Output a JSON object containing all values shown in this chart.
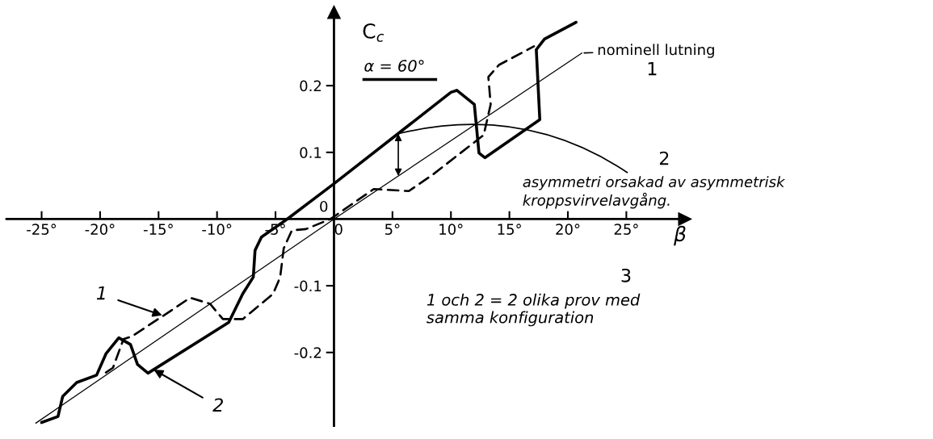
{
  "chart_data": {
    "type": "line",
    "xlabel": "β",
    "ylabel": "C$_{c}$",
    "xlim": [
      -28,
      30
    ],
    "ylim": [
      -0.31,
      0.31
    ],
    "xticks": [
      {
        "value": -25,
        "label": "-25°"
      },
      {
        "value": -20,
        "label": "-20°"
      },
      {
        "value": -15,
        "label": "-15°"
      },
      {
        "value": -10,
        "label": "-10°"
      },
      {
        "value": -5,
        "label": "-5°"
      },
      0,
      {
        "value": 5,
        "label": "5°"
      },
      {
        "value": 10,
        "label": "10°"
      },
      {
        "value": 15,
        "label": "15°"
      },
      {
        "value": 20,
        "label": "20°"
      },
      {
        "value": 25,
        "label": "25°"
      }
    ],
    "yticks": [
      {
        "value": -0.2,
        "label": "-0.2"
      },
      {
        "value": -0.1,
        "label": "-0.1"
      },
      0.1,
      0.2
    ],
    "grid": false,
    "series": [
      {
        "color": "#000000",
        "line_style": "solid",
        "x": [
          -25,
          -23.6,
          -23.2,
          -22.0,
          -20.3,
          -19.5,
          -18.4,
          -17.4,
          -16.8,
          -15.9,
          -9.0,
          -7.8,
          -6.9,
          -6.75,
          -6.2,
          -4.0,
          0,
          10.0,
          10.5,
          12.0,
          12.4,
          12.9,
          17.6,
          17.3,
          18.0,
          20.7
        ],
        "values": [
          -0.305,
          -0.296,
          -0.266,
          -0.245,
          -0.234,
          -0.202,
          -0.178,
          -0.188,
          -0.218,
          -0.231,
          -0.155,
          -0.112,
          -0.087,
          -0.047,
          -0.027,
          0,
          0.053,
          0.19,
          0.193,
          0.172,
          0.099,
          0.092,
          0.149,
          0.254,
          0.27,
          0.295
        ]
      },
      {
        "color": "#000000",
        "line_style": "dashed",
        "x": [
          -19.5,
          -18.9,
          -18.0,
          -17.3,
          -14.6,
          -12.3,
          -10.6,
          -9.5,
          -7.8,
          -5.2,
          -4.6,
          -4.3,
          -3.6,
          -2.4,
          -0.3,
          3.4,
          6.4,
          8.4,
          12.8,
          13.4,
          13.2,
          14.1,
          17.1
        ],
        "values": [
          -0.23,
          -0.223,
          -0.18,
          -0.176,
          -0.145,
          -0.118,
          -0.127,
          -0.15,
          -0.15,
          -0.112,
          -0.087,
          -0.044,
          -0.017,
          -0.015,
          0,
          0.045,
          0.042,
          0.066,
          0.126,
          0.172,
          0.213,
          0.231,
          0.259
        ]
      },
      {
        "color": "#000000",
        "line_style": "solid",
        "x": [
          -25.5,
          0,
          21.2
        ],
        "values": [
          -0.306,
          0,
          0.249
        ]
      }
    ],
    "annotations": [
      "α = 60°",
      {
        "text": "nominell lutning",
        "x": 21.2,
        "y": 0.249
      },
      "1",
      "2",
      "3",
      {
        "text": "asymmetri orsakad av asymmetrisk\nkroppsvirvelavgång.",
        "x": 5.5,
        "y": 0.128
      },
      {
        "text": "1",
        "x": -14.6,
        "y": -0.145
      },
      {
        "text": "2",
        "x": -15.5,
        "y": -0.225
      },
      "1 och 2 = 2 olika prov med\nsamma konfiguration",
      "0"
    ]
  }
}
